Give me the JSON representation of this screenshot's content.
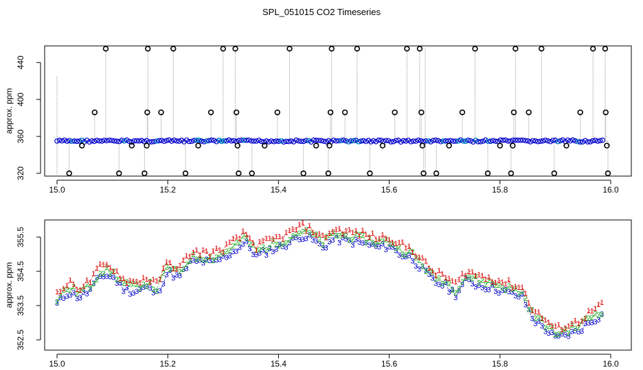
{
  "title": "SPL_051015  CO2 Timeseries",
  "chart_data": [
    {
      "type": "scatter",
      "ylabel": "approx. ppm",
      "xlabel": "",
      "xlim": [
        15.0,
        16.0
      ],
      "ylim": [
        317,
        458
      ],
      "xticks": [
        "15.0",
        "15.2",
        "15.4",
        "15.6",
        "15.8",
        "16.0"
      ],
      "yticks": [
        "320",
        "360",
        "400",
        "440"
      ],
      "baseline_ppm": 355,
      "series_colors": [
        "#0000cc",
        "#00bbbb",
        "#000000"
      ],
      "spikes": [
        {
          "x": 15.022,
          "y": 320
        },
        {
          "x": 15.045,
          "y": 350
        },
        {
          "x": 15.068,
          "y": 386
        },
        {
          "x": 15.088,
          "y": 455
        },
        {
          "x": 15.112,
          "y": 320
        },
        {
          "x": 15.135,
          "y": 350
        },
        {
          "x": 15.158,
          "y": 320
        },
        {
          "x": 15.162,
          "y": 350
        },
        {
          "x": 15.163,
          "y": 386
        },
        {
          "x": 15.164,
          "y": 455
        },
        {
          "x": 15.188,
          "y": 386
        },
        {
          "x": 15.21,
          "y": 455
        },
        {
          "x": 15.232,
          "y": 320
        },
        {
          "x": 15.255,
          "y": 350
        },
        {
          "x": 15.278,
          "y": 386
        },
        {
          "x": 15.3,
          "y": 455
        },
        {
          "x": 15.322,
          "y": 455
        },
        {
          "x": 15.324,
          "y": 386
        },
        {
          "x": 15.326,
          "y": 350
        },
        {
          "x": 15.328,
          "y": 320
        },
        {
          "x": 15.352,
          "y": 320
        },
        {
          "x": 15.375,
          "y": 350
        },
        {
          "x": 15.398,
          "y": 386
        },
        {
          "x": 15.42,
          "y": 455
        },
        {
          "x": 15.445,
          "y": 320
        },
        {
          "x": 15.468,
          "y": 350
        },
        {
          "x": 15.49,
          "y": 320
        },
        {
          "x": 15.492,
          "y": 350
        },
        {
          "x": 15.494,
          "y": 386
        },
        {
          "x": 15.496,
          "y": 455
        },
        {
          "x": 15.52,
          "y": 386
        },
        {
          "x": 15.542,
          "y": 455
        },
        {
          "x": 15.565,
          "y": 320
        },
        {
          "x": 15.588,
          "y": 350
        },
        {
          "x": 15.61,
          "y": 386
        },
        {
          "x": 15.632,
          "y": 455
        },
        {
          "x": 15.655,
          "y": 455
        },
        {
          "x": 15.658,
          "y": 386
        },
        {
          "x": 15.66,
          "y": 350
        },
        {
          "x": 15.662,
          "y": 320
        },
        {
          "x": 15.685,
          "y": 320
        },
        {
          "x": 15.708,
          "y": 350
        },
        {
          "x": 15.732,
          "y": 386
        },
        {
          "x": 15.755,
          "y": 455
        },
        {
          "x": 15.778,
          "y": 320
        },
        {
          "x": 15.8,
          "y": 350
        },
        {
          "x": 15.82,
          "y": 320
        },
        {
          "x": 15.823,
          "y": 350
        },
        {
          "x": 15.825,
          "y": 386
        },
        {
          "x": 15.828,
          "y": 455
        },
        {
          "x": 15.852,
          "y": 386
        },
        {
          "x": 15.875,
          "y": 455
        },
        {
          "x": 15.898,
          "y": 320
        },
        {
          "x": 15.92,
          "y": 350
        },
        {
          "x": 15.945,
          "y": 386
        },
        {
          "x": 15.968,
          "y": 455
        },
        {
          "x": 15.99,
          "y": 455
        },
        {
          "x": 15.991,
          "y": 386
        },
        {
          "x": 15.993,
          "y": 350
        },
        {
          "x": 15.995,
          "y": 320
        }
      ]
    },
    {
      "type": "line",
      "ylabel": "approx. ppm",
      "xlabel": "",
      "xlim": [
        15.0,
        16.0
      ],
      "ylim": [
        352.2,
        356.0
      ],
      "xticks": [
        "15.0",
        "15.2",
        "15.4",
        "15.6",
        "15.8",
        "16.0"
      ],
      "yticks": [
        "352.5",
        "353.5",
        "354.5",
        "355.5"
      ],
      "series_markers": [
        "1",
        "2",
        "3"
      ],
      "series_colors": [
        "#dd0000",
        "#22aa22",
        "#0000cc"
      ],
      "series_offsets": [
        0.28,
        0.14,
        0.0
      ],
      "trend": [
        {
          "x": 15.0,
          "y": 353.55
        },
        {
          "x": 15.02,
          "y": 353.9
        },
        {
          "x": 15.04,
          "y": 353.75
        },
        {
          "x": 15.06,
          "y": 353.95
        },
        {
          "x": 15.08,
          "y": 354.4
        },
        {
          "x": 15.1,
          "y": 354.35
        },
        {
          "x": 15.12,
          "y": 354.0
        },
        {
          "x": 15.14,
          "y": 353.9
        },
        {
          "x": 15.16,
          "y": 354.05
        },
        {
          "x": 15.18,
          "y": 353.85
        },
        {
          "x": 15.2,
          "y": 354.5
        },
        {
          "x": 15.22,
          "y": 354.3
        },
        {
          "x": 15.24,
          "y": 354.75
        },
        {
          "x": 15.26,
          "y": 354.8
        },
        {
          "x": 15.28,
          "y": 354.75
        },
        {
          "x": 15.3,
          "y": 354.9
        },
        {
          "x": 15.32,
          "y": 355.1
        },
        {
          "x": 15.34,
          "y": 355.35
        },
        {
          "x": 15.36,
          "y": 354.95
        },
        {
          "x": 15.38,
          "y": 355.1
        },
        {
          "x": 15.4,
          "y": 355.2
        },
        {
          "x": 15.42,
          "y": 355.35
        },
        {
          "x": 15.44,
          "y": 355.55
        },
        {
          "x": 15.46,
          "y": 355.45
        },
        {
          "x": 15.48,
          "y": 355.2
        },
        {
          "x": 15.5,
          "y": 355.45
        },
        {
          "x": 15.52,
          "y": 355.4
        },
        {
          "x": 15.54,
          "y": 355.35
        },
        {
          "x": 15.56,
          "y": 355.3
        },
        {
          "x": 15.58,
          "y": 355.2
        },
        {
          "x": 15.6,
          "y": 355.25
        },
        {
          "x": 15.62,
          "y": 355.0
        },
        {
          "x": 15.64,
          "y": 354.9
        },
        {
          "x": 15.66,
          "y": 354.55
        },
        {
          "x": 15.68,
          "y": 354.2
        },
        {
          "x": 15.7,
          "y": 354.1
        },
        {
          "x": 15.72,
          "y": 353.85
        },
        {
          "x": 15.74,
          "y": 354.25
        },
        {
          "x": 15.76,
          "y": 354.1
        },
        {
          "x": 15.78,
          "y": 354.05
        },
        {
          "x": 15.8,
          "y": 353.95
        },
        {
          "x": 15.82,
          "y": 353.85
        },
        {
          "x": 15.84,
          "y": 353.75
        },
        {
          "x": 15.86,
          "y": 353.1
        },
        {
          "x": 15.88,
          "y": 352.85
        },
        {
          "x": 15.9,
          "y": 352.55
        },
        {
          "x": 15.92,
          "y": 352.65
        },
        {
          "x": 15.94,
          "y": 352.75
        },
        {
          "x": 15.96,
          "y": 353.0
        },
        {
          "x": 15.98,
          "y": 353.2
        },
        {
          "x": 15.99,
          "y": 353.25
        }
      ]
    }
  ]
}
